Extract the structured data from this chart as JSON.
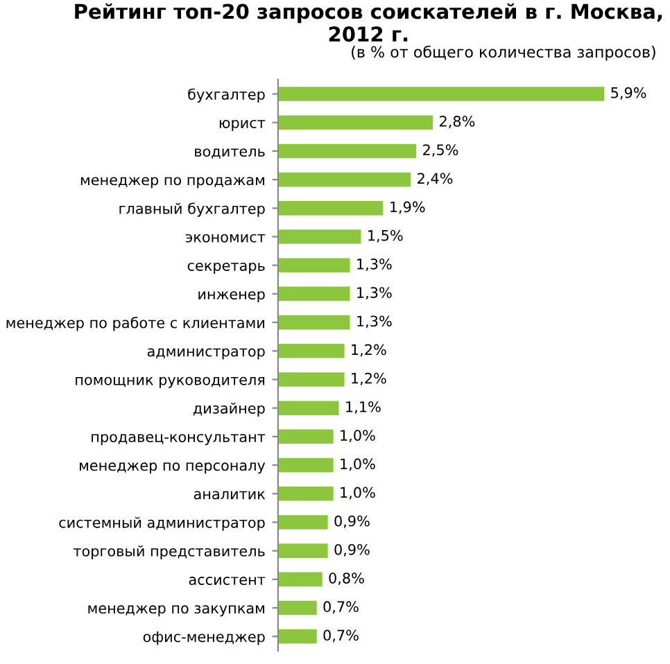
{
  "chart_data": {
    "type": "bar",
    "orientation": "horizontal",
    "title": "Рейтинг топ-20 запросов соискателей в г. Москва, 2012 г.",
    "subtitle": "(в % от общего количества запросов)",
    "categories": [
      "бухгалтер",
      "юрист",
      "водитель",
      "менеджер по продажам",
      "главный бухгалтер",
      "экономист",
      "секретарь",
      "инженер",
      "менеджер по работе с клиентами",
      "администратор",
      "помощник руководителя",
      "дизайнер",
      "продавец-консультант",
      "менеджер по персоналу",
      "аналитик",
      "системный администратор",
      "торговый представитель",
      "ассистент",
      "менеджер по закупкам",
      "офис-менеджер"
    ],
    "values": [
      5.9,
      2.8,
      2.5,
      2.4,
      1.9,
      1.5,
      1.3,
      1.3,
      1.3,
      1.2,
      1.2,
      1.1,
      1.0,
      1.0,
      1.0,
      0.9,
      0.9,
      0.8,
      0.7,
      0.7
    ],
    "value_labels": [
      "5,9%",
      "2,8%",
      "2,5%",
      "2,4%",
      "1,9%",
      "1,5%",
      "1,3%",
      "1,3%",
      "1,3%",
      "1,2%",
      "1,2%",
      "1,1%",
      "1,0%",
      "1,0%",
      "1,0%",
      "0,9%",
      "0,9%",
      "0,8%",
      "0,7%",
      "0,7%"
    ],
    "color": "#8cc63e",
    "grid": false,
    "legend": false
  }
}
